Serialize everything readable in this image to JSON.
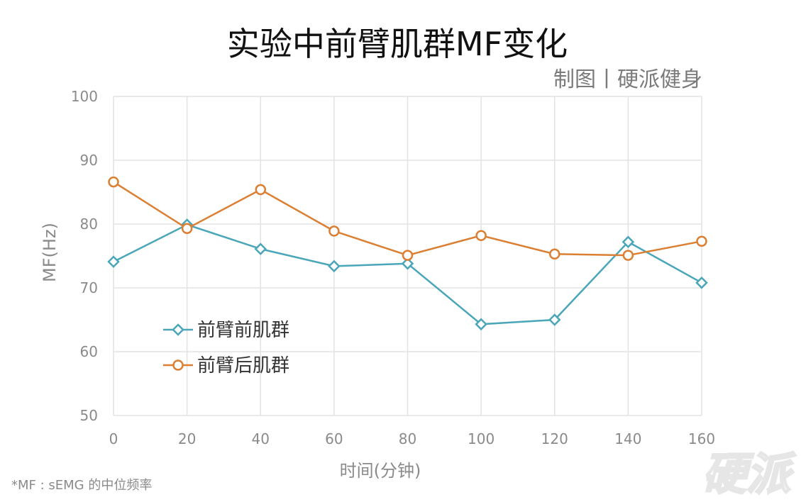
{
  "title": "实验中前臂肌群MF变化",
  "credit": "制图丨硬派健身",
  "footnote": "*MF : sEMG 的中位频率",
  "watermark": "硬派",
  "colors": {
    "series1": "#4aa6b8",
    "series2": "#db7f33",
    "grid": "#e3e3e3",
    "tick_text": "#8a8a8a"
  },
  "chart_data": {
    "type": "line",
    "xlabel": "时间(分钟)",
    "ylabel": "MF(Hz)",
    "x": [
      0,
      20,
      40,
      60,
      80,
      100,
      120,
      140,
      160
    ],
    "xlim": [
      0,
      160
    ],
    "ylim": [
      50,
      100
    ],
    "xticks": [
      "0",
      "20",
      "40",
      "60",
      "80",
      "100",
      "120",
      "140",
      "160"
    ],
    "yticks": [
      "50",
      "60",
      "70",
      "80",
      "90",
      "100"
    ],
    "grid": true,
    "legend_position": "center-left",
    "series": [
      {
        "name": "前臂前肌群",
        "marker": "diamond",
        "color": "#4aa6b8",
        "values": [
          74.1,
          79.9,
          76.1,
          73.4,
          73.8,
          64.3,
          65.0,
          77.2,
          70.8
        ]
      },
      {
        "name": "前臂后肌群",
        "marker": "circle",
        "color": "#db7f33",
        "values": [
          86.6,
          79.3,
          85.4,
          78.9,
          75.1,
          78.2,
          75.3,
          75.1,
          77.3
        ]
      }
    ]
  }
}
